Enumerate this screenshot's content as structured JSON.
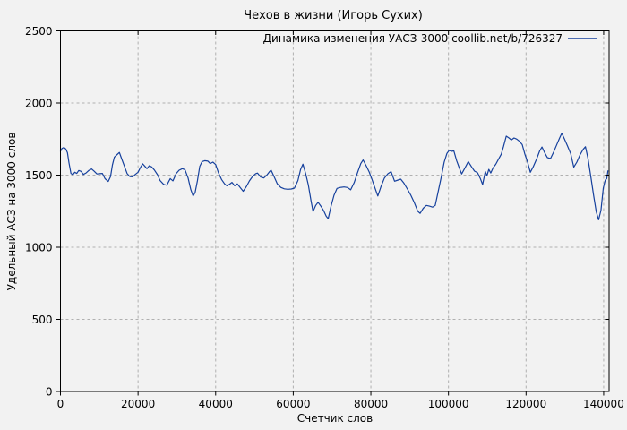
{
  "figure": {
    "background": "#f2f2f2",
    "frame_color": "#000000",
    "grid_color": "#b0b0b0",
    "text_color": "#000000"
  },
  "chart_data": {
    "type": "line",
    "title": "Чехов в жизни (Игорь Сухих)",
    "xlabel": "Счетчик слов",
    "ylabel": "Удельный АСЗ на 3000 слов",
    "xlim": [
      0,
      141400
    ],
    "ylim": [
      0,
      2500
    ],
    "xticks": [
      0,
      20000,
      40000,
      60000,
      80000,
      100000,
      120000,
      140000
    ],
    "yticks": [
      0,
      500,
      1000,
      1500,
      2000,
      2500
    ],
    "grid": true,
    "legend": {
      "position": "top-right-inside",
      "entries": [
        {
          "label": "Динамика изменения УАСЗ-3000 coollib.net/b/726327",
          "color": "#15409d"
        }
      ]
    },
    "series": [
      {
        "name": "Динамика изменения УАСЗ-3000 coollib.net/b/726327",
        "color": "#15409d",
        "points": [
          [
            0,
            1665
          ],
          [
            400,
            1685
          ],
          [
            900,
            1692
          ],
          [
            1400,
            1680
          ],
          [
            1800,
            1655
          ],
          [
            2200,
            1585
          ],
          [
            2700,
            1512
          ],
          [
            3200,
            1503
          ],
          [
            3700,
            1520
          ],
          [
            4200,
            1512
          ],
          [
            4700,
            1532
          ],
          [
            5300,
            1526
          ],
          [
            5900,
            1505
          ],
          [
            6600,
            1515
          ],
          [
            7300,
            1532
          ],
          [
            8000,
            1543
          ],
          [
            8700,
            1527
          ],
          [
            9400,
            1508
          ],
          [
            10100,
            1510
          ],
          [
            10800,
            1512
          ],
          [
            11500,
            1475
          ],
          [
            12300,
            1456
          ],
          [
            12900,
            1490
          ],
          [
            13400,
            1570
          ],
          [
            13900,
            1625
          ],
          [
            14500,
            1640
          ],
          [
            15200,
            1657
          ],
          [
            15800,
            1612
          ],
          [
            16500,
            1560
          ],
          [
            17200,
            1510
          ],
          [
            17900,
            1490
          ],
          [
            18600,
            1488
          ],
          [
            19300,
            1505
          ],
          [
            20000,
            1520
          ],
          [
            20600,
            1552
          ],
          [
            21200,
            1578
          ],
          [
            21800,
            1560
          ],
          [
            22300,
            1545
          ],
          [
            22900,
            1565
          ],
          [
            23500,
            1557
          ],
          [
            24200,
            1536
          ],
          [
            25000,
            1503
          ],
          [
            25700,
            1462
          ],
          [
            26600,
            1436
          ],
          [
            27400,
            1430
          ],
          [
            28300,
            1476
          ],
          [
            29000,
            1460
          ],
          [
            29800,
            1510
          ],
          [
            30600,
            1534
          ],
          [
            31400,
            1545
          ],
          [
            32100,
            1538
          ],
          [
            32900,
            1480
          ],
          [
            33600,
            1400
          ],
          [
            34200,
            1355
          ],
          [
            34700,
            1378
          ],
          [
            35300,
            1460
          ],
          [
            35900,
            1560
          ],
          [
            36500,
            1594
          ],
          [
            37200,
            1600
          ],
          [
            38000,
            1597
          ],
          [
            38600,
            1580
          ],
          [
            39300,
            1590
          ],
          [
            40000,
            1573
          ],
          [
            40700,
            1518
          ],
          [
            41500,
            1470
          ],
          [
            42300,
            1440
          ],
          [
            42900,
            1426
          ],
          [
            43600,
            1437
          ],
          [
            44200,
            1450
          ],
          [
            44900,
            1426
          ],
          [
            45600,
            1440
          ],
          [
            46300,
            1415
          ],
          [
            47100,
            1388
          ],
          [
            47900,
            1420
          ],
          [
            48700,
            1460
          ],
          [
            49500,
            1490
          ],
          [
            50300,
            1510
          ],
          [
            50800,
            1514
          ],
          [
            51600,
            1487
          ],
          [
            52400,
            1480
          ],
          [
            53200,
            1500
          ],
          [
            53900,
            1525
          ],
          [
            54300,
            1534
          ],
          [
            55100,
            1487
          ],
          [
            55900,
            1440
          ],
          [
            56800,
            1415
          ],
          [
            57700,
            1405
          ],
          [
            58600,
            1402
          ],
          [
            59500,
            1404
          ],
          [
            60300,
            1410
          ],
          [
            61200,
            1462
          ],
          [
            61900,
            1540
          ],
          [
            62500,
            1576
          ],
          [
            63200,
            1510
          ],
          [
            63900,
            1430
          ],
          [
            64600,
            1320
          ],
          [
            65100,
            1248
          ],
          [
            65800,
            1290
          ],
          [
            66400,
            1312
          ],
          [
            67100,
            1285
          ],
          [
            67800,
            1255
          ],
          [
            68500,
            1215
          ],
          [
            69000,
            1198
          ],
          [
            69700,
            1280
          ],
          [
            70500,
            1360
          ],
          [
            71300,
            1408
          ],
          [
            72200,
            1415
          ],
          [
            73100,
            1418
          ],
          [
            74000,
            1414
          ],
          [
            74800,
            1398
          ],
          [
            75700,
            1448
          ],
          [
            76600,
            1520
          ],
          [
            77400,
            1580
          ],
          [
            78000,
            1605
          ],
          [
            78800,
            1565
          ],
          [
            79600,
            1520
          ],
          [
            80300,
            1470
          ],
          [
            81000,
            1415
          ],
          [
            81800,
            1355
          ],
          [
            82600,
            1420
          ],
          [
            83500,
            1480
          ],
          [
            84400,
            1510
          ],
          [
            85200,
            1524
          ],
          [
            86100,
            1458
          ],
          [
            87000,
            1466
          ],
          [
            87700,
            1472
          ],
          [
            88500,
            1445
          ],
          [
            89400,
            1404
          ],
          [
            90300,
            1360
          ],
          [
            91200,
            1310
          ],
          [
            92100,
            1250
          ],
          [
            92700,
            1235
          ],
          [
            93500,
            1270
          ],
          [
            94300,
            1290
          ],
          [
            95100,
            1285
          ],
          [
            95900,
            1278
          ],
          [
            96600,
            1290
          ],
          [
            97300,
            1380
          ],
          [
            98100,
            1480
          ],
          [
            98900,
            1590
          ],
          [
            99600,
            1650
          ],
          [
            100200,
            1672
          ],
          [
            100800,
            1665
          ],
          [
            101400,
            1668
          ],
          [
            102100,
            1600
          ],
          [
            102800,
            1549
          ],
          [
            103400,
            1508
          ],
          [
            104300,
            1552
          ],
          [
            105100,
            1594
          ],
          [
            105900,
            1560
          ],
          [
            106700,
            1528
          ],
          [
            107500,
            1516
          ],
          [
            108200,
            1477
          ],
          [
            108800,
            1435
          ],
          [
            109500,
            1525
          ],
          [
            109900,
            1495
          ],
          [
            110400,
            1540
          ],
          [
            110900,
            1515
          ],
          [
            111500,
            1550
          ],
          [
            112200,
            1575
          ],
          [
            112900,
            1610
          ],
          [
            113600,
            1645
          ],
          [
            114200,
            1700
          ],
          [
            114900,
            1770
          ],
          [
            115600,
            1758
          ],
          [
            116200,
            1744
          ],
          [
            116900,
            1758
          ],
          [
            117600,
            1750
          ],
          [
            118300,
            1735
          ],
          [
            119000,
            1712
          ],
          [
            119700,
            1645
          ],
          [
            120400,
            1590
          ],
          [
            121100,
            1520
          ],
          [
            121900,
            1560
          ],
          [
            122700,
            1610
          ],
          [
            123500,
            1668
          ],
          [
            124100,
            1695
          ],
          [
            124800,
            1655
          ],
          [
            125500,
            1622
          ],
          [
            126300,
            1615
          ],
          [
            127100,
            1660
          ],
          [
            127900,
            1710
          ],
          [
            128600,
            1755
          ],
          [
            129200,
            1790
          ],
          [
            129900,
            1750
          ],
          [
            130700,
            1700
          ],
          [
            131500,
            1650
          ],
          [
            132300,
            1555
          ],
          [
            133100,
            1590
          ],
          [
            133900,
            1640
          ],
          [
            134700,
            1678
          ],
          [
            135300,
            1697
          ],
          [
            136000,
            1610
          ],
          [
            136700,
            1490
          ],
          [
            137400,
            1360
          ],
          [
            138100,
            1245
          ],
          [
            138700,
            1190
          ],
          [
            139300,
            1255
          ],
          [
            139900,
            1410
          ],
          [
            140400,
            1465
          ],
          [
            140800,
            1475
          ],
          [
            141100,
            1530
          ]
        ]
      }
    ]
  }
}
